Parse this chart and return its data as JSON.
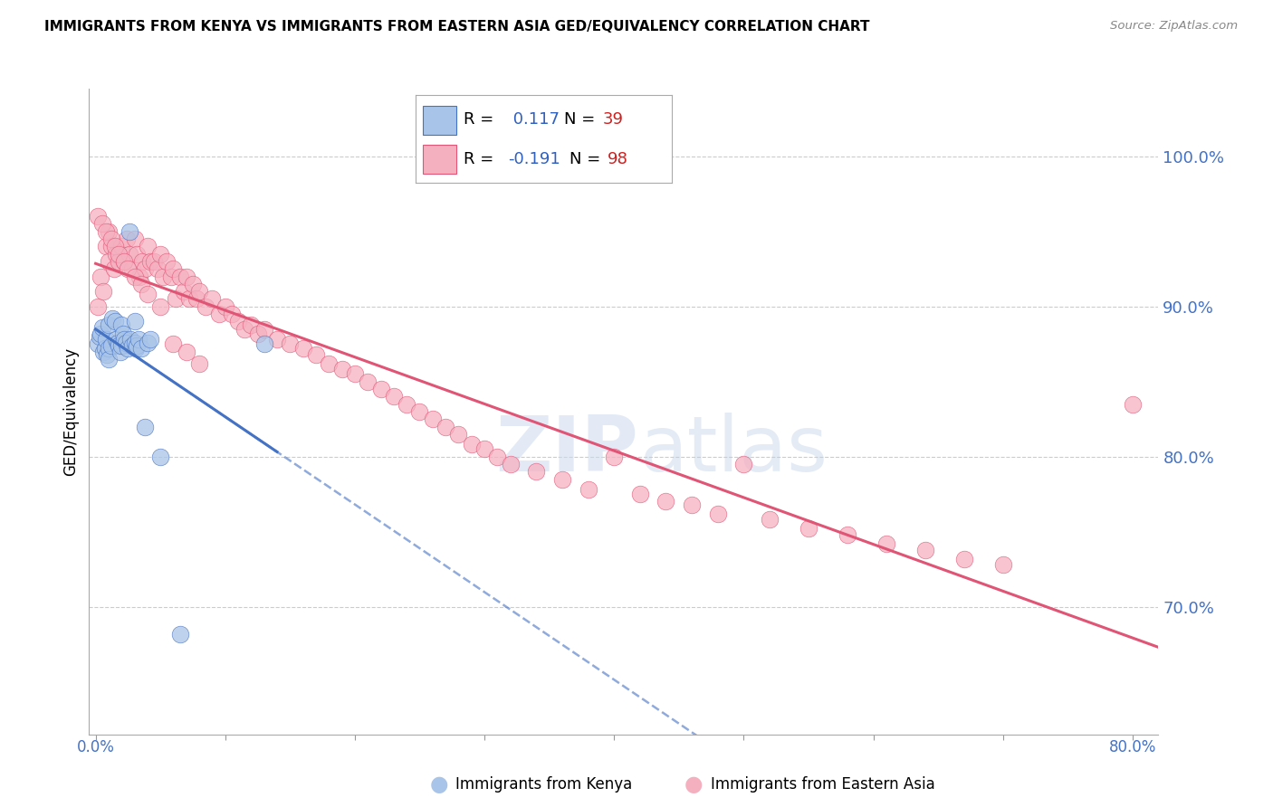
{
  "title": "IMMIGRANTS FROM KENYA VS IMMIGRANTS FROM EASTERN ASIA GED/EQUIVALENCY CORRELATION CHART",
  "source": "Source: ZipAtlas.com",
  "ylabel": "GED/Equivalency",
  "right_yticks": [
    "100.0%",
    "90.0%",
    "80.0%",
    "70.0%"
  ],
  "right_ytick_vals": [
    1.0,
    0.9,
    0.8,
    0.7
  ],
  "legend_r_blue": "0.117",
  "legend_n_blue": "39",
  "legend_r_pink": "-0.191",
  "legend_n_pink": "98",
  "blue_color": "#a8c4e8",
  "pink_color": "#f5b0c0",
  "line_blue": "#4472c4",
  "line_pink": "#e05575",
  "right_axis_color": "#4472c4",
  "grid_color": "#cccccc",
  "xlim": [
    -0.005,
    0.82
  ],
  "ylim": [
    0.615,
    1.045
  ],
  "kenya_x": [
    0.002,
    0.003,
    0.004,
    0.005,
    0.006,
    0.007,
    0.008,
    0.009,
    0.01,
    0.01,
    0.01,
    0.012,
    0.013,
    0.015,
    0.016,
    0.017,
    0.018,
    0.019,
    0.02,
    0.02,
    0.021,
    0.022,
    0.023,
    0.025,
    0.026,
    0.027,
    0.028,
    0.03,
    0.03,
    0.031,
    0.032,
    0.033,
    0.035,
    0.038,
    0.04,
    0.042,
    0.05,
    0.065,
    0.13
  ],
  "kenya_y": [
    0.875,
    0.88,
    0.882,
    0.886,
    0.87,
    0.872,
    0.878,
    0.868,
    0.888,
    0.872,
    0.865,
    0.874,
    0.892,
    0.89,
    0.878,
    0.876,
    0.874,
    0.87,
    0.888,
    0.874,
    0.882,
    0.878,
    0.876,
    0.872,
    0.95,
    0.878,
    0.874,
    0.89,
    0.876,
    0.872,
    0.874,
    0.878,
    0.872,
    0.82,
    0.876,
    0.878,
    0.8,
    0.682,
    0.875
  ],
  "easternasia_x": [
    0.002,
    0.004,
    0.006,
    0.008,
    0.01,
    0.01,
    0.012,
    0.014,
    0.016,
    0.018,
    0.02,
    0.022,
    0.024,
    0.026,
    0.028,
    0.03,
    0.032,
    0.034,
    0.036,
    0.038,
    0.04,
    0.042,
    0.045,
    0.048,
    0.05,
    0.052,
    0.055,
    0.058,
    0.06,
    0.062,
    0.065,
    0.068,
    0.07,
    0.072,
    0.075,
    0.078,
    0.08,
    0.085,
    0.09,
    0.095,
    0.1,
    0.105,
    0.11,
    0.115,
    0.12,
    0.125,
    0.13,
    0.14,
    0.15,
    0.16,
    0.17,
    0.18,
    0.19,
    0.2,
    0.21,
    0.22,
    0.23,
    0.24,
    0.25,
    0.26,
    0.27,
    0.28,
    0.29,
    0.3,
    0.31,
    0.32,
    0.34,
    0.36,
    0.38,
    0.4,
    0.42,
    0.44,
    0.46,
    0.48,
    0.5,
    0.52,
    0.55,
    0.58,
    0.61,
    0.64,
    0.67,
    0.7,
    0.002,
    0.005,
    0.008,
    0.012,
    0.015,
    0.018,
    0.022,
    0.025,
    0.03,
    0.035,
    0.04,
    0.05,
    0.06,
    0.07,
    0.08,
    0.8
  ],
  "easternasia_y": [
    0.9,
    0.92,
    0.91,
    0.94,
    0.93,
    0.95,
    0.94,
    0.925,
    0.935,
    0.93,
    0.94,
    0.93,
    0.945,
    0.935,
    0.925,
    0.945,
    0.935,
    0.92,
    0.93,
    0.925,
    0.94,
    0.93,
    0.93,
    0.925,
    0.935,
    0.92,
    0.93,
    0.92,
    0.925,
    0.905,
    0.92,
    0.91,
    0.92,
    0.905,
    0.915,
    0.905,
    0.91,
    0.9,
    0.905,
    0.895,
    0.9,
    0.895,
    0.89,
    0.885,
    0.888,
    0.882,
    0.885,
    0.878,
    0.875,
    0.872,
    0.868,
    0.862,
    0.858,
    0.855,
    0.85,
    0.845,
    0.84,
    0.835,
    0.83,
    0.825,
    0.82,
    0.815,
    0.808,
    0.805,
    0.8,
    0.795,
    0.79,
    0.785,
    0.778,
    0.8,
    0.775,
    0.77,
    0.768,
    0.762,
    0.795,
    0.758,
    0.752,
    0.748,
    0.742,
    0.738,
    0.732,
    0.728,
    0.96,
    0.955,
    0.95,
    0.945,
    0.94,
    0.935,
    0.93,
    0.925,
    0.92,
    0.915,
    0.908,
    0.9,
    0.875,
    0.87,
    0.862,
    0.835
  ]
}
